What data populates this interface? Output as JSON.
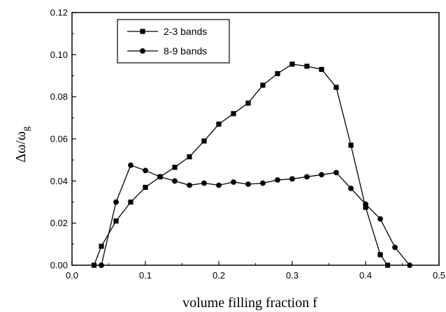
{
  "chart_data": {
    "type": "line",
    "xlabel": "volume filling fraction f",
    "ylabel": "Δω/ω",
    "ylabel_sub": "g",
    "xlim": [
      0.0,
      0.5
    ],
    "ylim": [
      0.0,
      0.12
    ],
    "x_ticks": [
      "0.0",
      "0.1",
      "0.2",
      "0.3",
      "0.4",
      "0.5"
    ],
    "y_ticks": [
      "0.00",
      "0.02",
      "0.04",
      "0.06",
      "0.08",
      "0.10",
      "0.12"
    ],
    "grid": false,
    "legend_position": "top-left",
    "series": [
      {
        "name": "2-3 bands",
        "marker": "square",
        "x": [
          0.03,
          0.04,
          0.06,
          0.08,
          0.1,
          0.12,
          0.14,
          0.16,
          0.18,
          0.2,
          0.22,
          0.24,
          0.26,
          0.28,
          0.3,
          0.32,
          0.34,
          0.36,
          0.38,
          0.4,
          0.42,
          0.43
        ],
        "y": [
          0.0,
          0.009,
          0.021,
          0.03,
          0.037,
          0.042,
          0.0465,
          0.0515,
          0.059,
          0.067,
          0.072,
          0.077,
          0.0855,
          0.091,
          0.0955,
          0.0945,
          0.093,
          0.0845,
          0.057,
          0.0275,
          0.005,
          0.0
        ]
      },
      {
        "name": "8-9 bands",
        "marker": "circle",
        "x": [
          0.04,
          0.06,
          0.08,
          0.1,
          0.12,
          0.14,
          0.16,
          0.18,
          0.2,
          0.22,
          0.24,
          0.26,
          0.28,
          0.3,
          0.32,
          0.34,
          0.36,
          0.38,
          0.4,
          0.42,
          0.44,
          0.46
        ],
        "y": [
          0.0,
          0.03,
          0.0475,
          0.045,
          0.042,
          0.04,
          0.038,
          0.039,
          0.038,
          0.0395,
          0.0385,
          0.039,
          0.0405,
          0.041,
          0.042,
          0.043,
          0.044,
          0.0365,
          0.029,
          0.022,
          0.0085,
          0.0
        ]
      }
    ]
  }
}
